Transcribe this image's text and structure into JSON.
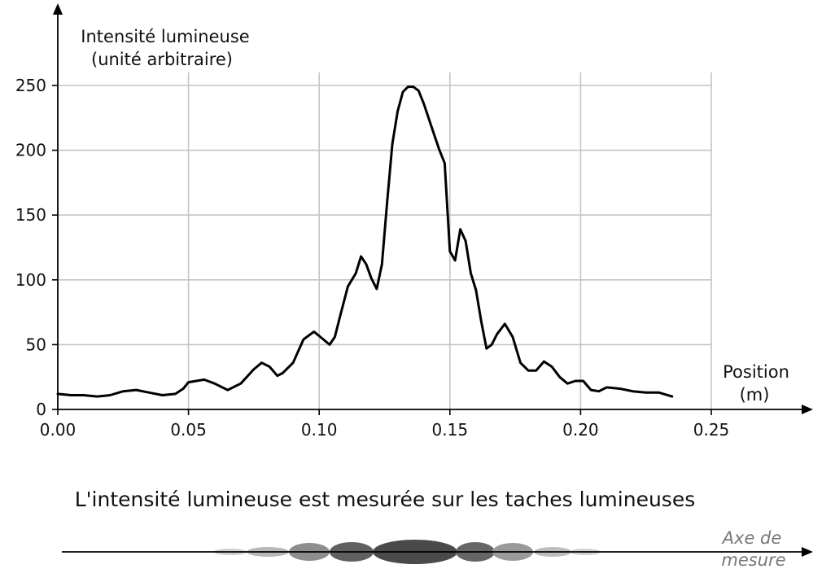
{
  "chart_data": {
    "type": "line",
    "ylabel_line1": "Intensité lumineuse",
    "ylabel_line2": "(unité arbitraire)",
    "xlabel_line1": "Position",
    "xlabel_line2": "(m)",
    "xlim": [
      0,
      0.25
    ],
    "ylim": [
      0,
      250
    ],
    "grid": true,
    "x_ticks": [
      0.0,
      0.05,
      0.1,
      0.15,
      0.2,
      0.25
    ],
    "x_tick_labels": [
      "0.00",
      "0.05",
      "0.10",
      "0.15",
      "0.20",
      "0.25"
    ],
    "y_ticks": [
      0,
      50,
      100,
      150,
      200,
      250
    ],
    "y_tick_labels": [
      "0",
      "50",
      "100",
      "150",
      "200",
      "250"
    ],
    "series": [
      {
        "color": "#000000",
        "x": [
          0.0,
          0.005,
          0.01,
          0.015,
          0.02,
          0.025,
          0.03,
          0.035,
          0.04,
          0.045,
          0.048,
          0.05,
          0.053,
          0.056,
          0.06,
          0.065,
          0.07,
          0.075,
          0.078,
          0.081,
          0.084,
          0.086,
          0.09,
          0.094,
          0.098,
          0.101,
          0.104,
          0.106,
          0.108,
          0.111,
          0.114,
          0.116,
          0.118,
          0.12,
          0.122,
          0.124,
          0.126,
          0.128,
          0.13,
          0.132,
          0.134,
          0.136,
          0.138,
          0.14,
          0.142,
          0.144,
          0.146,
          0.148,
          0.15,
          0.152,
          0.154,
          0.156,
          0.158,
          0.16,
          0.162,
          0.164,
          0.166,
          0.168,
          0.171,
          0.174,
          0.177,
          0.18,
          0.183,
          0.186,
          0.189,
          0.192,
          0.195,
          0.198,
          0.201,
          0.204,
          0.207,
          0.21,
          0.215,
          0.22,
          0.225,
          0.23,
          0.235
        ],
        "y": [
          12,
          11,
          11,
          10,
          11,
          14,
          15,
          13,
          11,
          12,
          16,
          21,
          22,
          23,
          20,
          15,
          20,
          31,
          36,
          33,
          26,
          28,
          36,
          54,
          60,
          55,
          50,
          56,
          72,
          95,
          105,
          118,
          112,
          101,
          93,
          112,
          160,
          205,
          230,
          245,
          249,
          249,
          246,
          236,
          224,
          212,
          200,
          190,
          122,
          115,
          139,
          130,
          105,
          92,
          68,
          47,
          50,
          58,
          66,
          56,
          36,
          30,
          30,
          37,
          33,
          25,
          20,
          22,
          22,
          15,
          14,
          17,
          16,
          14,
          13,
          13,
          10
        ]
      }
    ]
  },
  "caption": "L'intensité lumineuse est mesurée sur les taches lumineuses",
  "measure_axis": {
    "label_line1": "Axe de",
    "label_line2": "mesure"
  }
}
